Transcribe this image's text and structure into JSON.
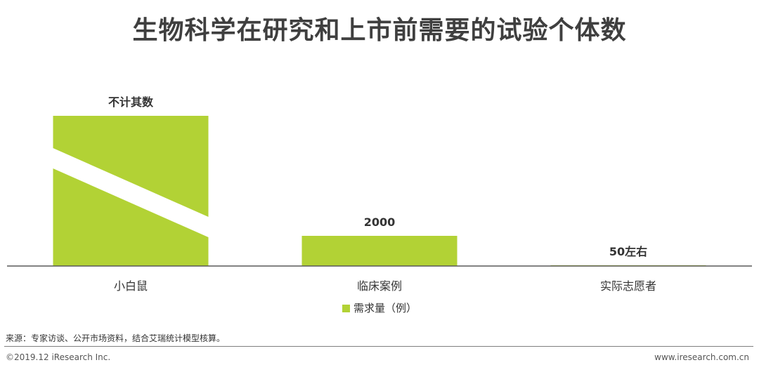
{
  "chart_data": {
    "type": "bar",
    "title": "生物科学在研究和上市前需要的试验个体数",
    "categories": [
      "小白鼠",
      "临床案例",
      "实际志愿者"
    ],
    "series": [
      {
        "name": "需求量（例）",
        "values": [
          null,
          2000,
          50
        ],
        "color": "#b2d235"
      }
    ],
    "data_labels": [
      "不计其数",
      "2000",
      "50左右"
    ],
    "notes": {
      "broken_bar": "小白鼠"
    },
    "legend_position": "bottom",
    "grid": false
  },
  "source": "来源：专家访谈、公开市场资料，结合艾瑞统计模型核算。",
  "copyright": "©2019.12 iResearch Inc.",
  "website": "www.iresearch.com.cn"
}
